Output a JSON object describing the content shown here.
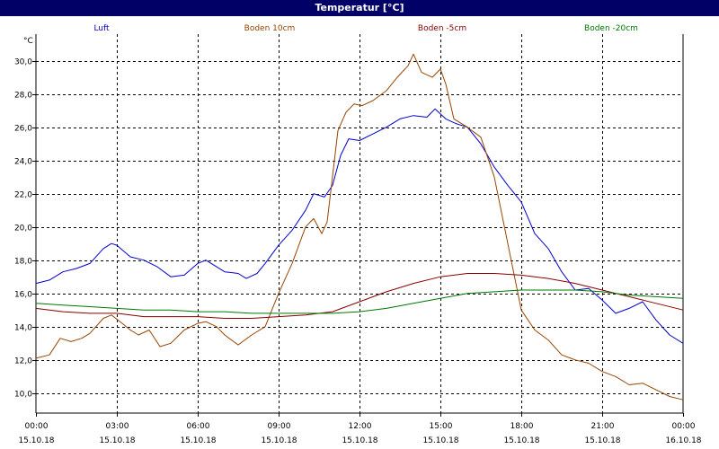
{
  "chart_data": {
    "type": "line",
    "title": "Temperatur [°C]",
    "ylabel": "°C",
    "xlabel": "",
    "ylim": [
      8.8,
      31.6
    ],
    "xlim_hours": [
      0,
      24
    ],
    "grid": true,
    "legend_placement": "top",
    "y_ticks": [
      "10,0",
      "12,0",
      "14,0",
      "16,0",
      "18,0",
      "20,0",
      "22,0",
      "24,0",
      "26,0",
      "28,0",
      "30,0"
    ],
    "x_ticks": [
      {
        "time": "00:00",
        "date": "15.10.18"
      },
      {
        "time": "03:00",
        "date": "15.10.18"
      },
      {
        "time": "06:00",
        "date": "15.10.18"
      },
      {
        "time": "09:00",
        "date": "15.10.18"
      },
      {
        "time": "12:00",
        "date": "15.10.18"
      },
      {
        "time": "15:00",
        "date": "15.10.18"
      },
      {
        "time": "18:00",
        "date": "15.10.18"
      },
      {
        "time": "21:00",
        "date": "15.10.18"
      },
      {
        "time": "00:00",
        "date": "16.10.18"
      }
    ],
    "series": [
      {
        "name": "Luft",
        "color": "#0000cc",
        "points": [
          [
            0,
            16.6
          ],
          [
            0.5,
            16.8
          ],
          [
            1,
            17.3
          ],
          [
            1.5,
            17.5
          ],
          [
            2,
            17.8
          ],
          [
            2.5,
            18.7
          ],
          [
            2.8,
            19.0
          ],
          [
            3,
            18.9
          ],
          [
            3.5,
            18.2
          ],
          [
            4,
            18.0
          ],
          [
            4.5,
            17.6
          ],
          [
            5,
            17.0
          ],
          [
            5.5,
            17.1
          ],
          [
            6,
            17.8
          ],
          [
            6.3,
            18.0
          ],
          [
            6.7,
            17.6
          ],
          [
            7,
            17.3
          ],
          [
            7.5,
            17.2
          ],
          [
            7.8,
            16.9
          ],
          [
            8.2,
            17.2
          ],
          [
            8.5,
            17.8
          ],
          [
            9,
            18.9
          ],
          [
            9.5,
            19.8
          ],
          [
            10,
            21.0
          ],
          [
            10.3,
            22.0
          ],
          [
            10.7,
            21.8
          ],
          [
            11,
            22.5
          ],
          [
            11.3,
            24.3
          ],
          [
            11.6,
            25.3
          ],
          [
            12,
            25.2
          ],
          [
            12.5,
            25.6
          ],
          [
            13,
            26.0
          ],
          [
            13.5,
            26.5
          ],
          [
            14,
            26.7
          ],
          [
            14.5,
            26.6
          ],
          [
            14.8,
            27.1
          ],
          [
            15.2,
            26.5
          ],
          [
            15.6,
            26.2
          ],
          [
            16,
            26.0
          ],
          [
            16.5,
            25.0
          ],
          [
            17,
            23.6
          ],
          [
            17.5,
            22.5
          ],
          [
            18,
            21.5
          ],
          [
            18.5,
            19.6
          ],
          [
            19,
            18.7
          ],
          [
            19.5,
            17.3
          ],
          [
            20,
            16.2
          ],
          [
            20.5,
            16.3
          ],
          [
            21,
            15.6
          ],
          [
            21.5,
            14.8
          ],
          [
            22,
            15.1
          ],
          [
            22.5,
            15.5
          ],
          [
            23,
            14.4
          ],
          [
            23.5,
            13.5
          ],
          [
            24,
            13.0
          ]
        ]
      },
      {
        "name": "Boden 10cm",
        "color": "#994400",
        "points": [
          [
            0,
            12.1
          ],
          [
            0.5,
            12.3
          ],
          [
            0.9,
            13.3
          ],
          [
            1.3,
            13.1
          ],
          [
            1.7,
            13.3
          ],
          [
            2,
            13.6
          ],
          [
            2.5,
            14.5
          ],
          [
            2.8,
            14.7
          ],
          [
            3.2,
            14.2
          ],
          [
            3.5,
            13.8
          ],
          [
            3.8,
            13.5
          ],
          [
            4.2,
            13.8
          ],
          [
            4.6,
            12.8
          ],
          [
            5,
            13.0
          ],
          [
            5.5,
            13.8
          ],
          [
            6,
            14.2
          ],
          [
            6.3,
            14.3
          ],
          [
            6.7,
            14.0
          ],
          [
            7,
            13.5
          ],
          [
            7.5,
            12.9
          ],
          [
            8,
            13.5
          ],
          [
            8.5,
            14.0
          ],
          [
            9,
            16.0
          ],
          [
            9.5,
            17.8
          ],
          [
            10,
            20.0
          ],
          [
            10.3,
            20.5
          ],
          [
            10.6,
            19.6
          ],
          [
            10.8,
            20.3
          ],
          [
            11.2,
            25.8
          ],
          [
            11.5,
            26.9
          ],
          [
            11.8,
            27.4
          ],
          [
            12.1,
            27.3
          ],
          [
            12.5,
            27.6
          ],
          [
            13,
            28.2
          ],
          [
            13.4,
            29.0
          ],
          [
            13.8,
            29.7
          ],
          [
            14,
            30.4
          ],
          [
            14.3,
            29.3
          ],
          [
            14.7,
            29.0
          ],
          [
            15,
            29.5
          ],
          [
            15.2,
            28.6
          ],
          [
            15.5,
            26.5
          ],
          [
            16,
            26.0
          ],
          [
            16.5,
            25.4
          ],
          [
            17,
            23.0
          ],
          [
            17.5,
            19.0
          ],
          [
            18,
            15.0
          ],
          [
            18.5,
            13.8
          ],
          [
            19,
            13.2
          ],
          [
            19.5,
            12.3
          ],
          [
            20,
            12.0
          ],
          [
            20.5,
            11.8
          ],
          [
            21,
            11.3
          ],
          [
            21.5,
            11.0
          ],
          [
            22,
            10.5
          ],
          [
            22.5,
            10.6
          ],
          [
            23,
            10.2
          ],
          [
            23.5,
            9.8
          ],
          [
            24,
            9.6
          ]
        ]
      },
      {
        "name": "Boden -5cm",
        "color": "#880000",
        "points": [
          [
            0,
            15.1
          ],
          [
            1,
            14.9
          ],
          [
            2,
            14.8
          ],
          [
            3,
            14.8
          ],
          [
            4,
            14.6
          ],
          [
            5,
            14.6
          ],
          [
            6,
            14.6
          ],
          [
            7,
            14.5
          ],
          [
            8,
            14.5
          ],
          [
            9,
            14.6
          ],
          [
            10,
            14.7
          ],
          [
            11,
            14.9
          ],
          [
            12,
            15.5
          ],
          [
            13,
            16.1
          ],
          [
            14,
            16.6
          ],
          [
            15,
            17.0
          ],
          [
            16,
            17.2
          ],
          [
            17,
            17.2
          ],
          [
            18,
            17.1
          ],
          [
            19,
            16.9
          ],
          [
            20,
            16.6
          ],
          [
            21,
            16.2
          ],
          [
            22,
            15.8
          ],
          [
            23,
            15.4
          ],
          [
            24,
            15.0
          ]
        ]
      },
      {
        "name": "Boden -20cm",
        "color": "#007700",
        "points": [
          [
            0,
            15.4
          ],
          [
            1,
            15.3
          ],
          [
            2,
            15.2
          ],
          [
            3,
            15.1
          ],
          [
            4,
            15.0
          ],
          [
            5,
            15.0
          ],
          [
            6,
            14.9
          ],
          [
            7,
            14.9
          ],
          [
            8,
            14.8
          ],
          [
            9,
            14.8
          ],
          [
            10,
            14.8
          ],
          [
            11,
            14.8
          ],
          [
            12,
            14.9
          ],
          [
            13,
            15.1
          ],
          [
            14,
            15.4
          ],
          [
            15,
            15.7
          ],
          [
            16,
            16.0
          ],
          [
            17,
            16.1
          ],
          [
            18,
            16.2
          ],
          [
            19,
            16.2
          ],
          [
            20,
            16.2
          ],
          [
            21,
            16.1
          ],
          [
            22,
            15.9
          ],
          [
            23,
            15.8
          ],
          [
            24,
            15.7
          ]
        ]
      }
    ]
  }
}
